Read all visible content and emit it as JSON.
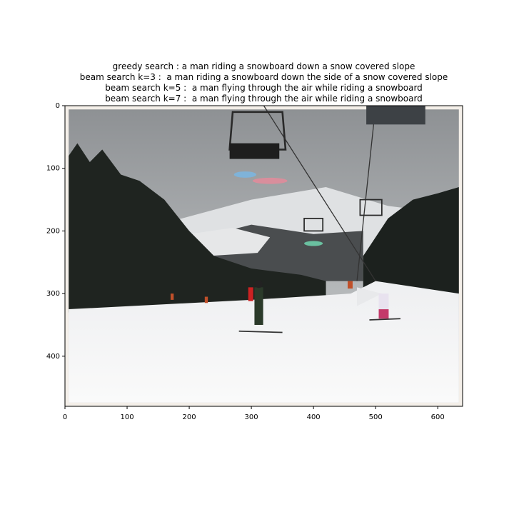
{
  "chart_data": {
    "type": "image",
    "title": [
      "greedy search : a man riding a snowboard down a snow covered slope",
      "beam search k=3 :  a man riding a snowboard down the side of a snow covered slope",
      "beam search k=5 :  a man flying through the air while riding a snowboard",
      "beam search k=7 :  a man flying through the air while riding a snowboard"
    ],
    "xlim": [
      0,
      640
    ],
    "ylim": [
      480,
      0
    ],
    "xticks": [
      0,
      100,
      200,
      300,
      400,
      500,
      600
    ],
    "yticks": [
      0,
      100,
      200,
      300,
      400
    ]
  }
}
